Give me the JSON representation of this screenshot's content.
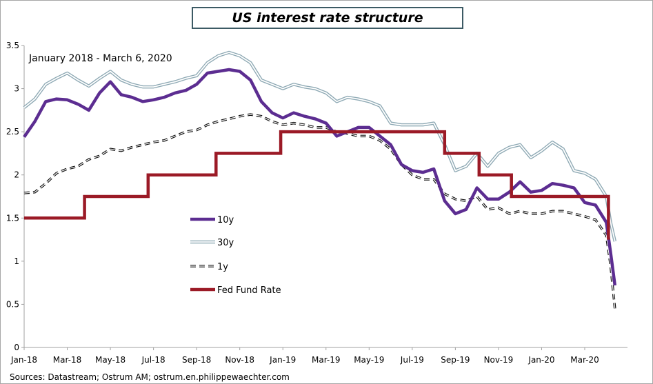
{
  "chart_data": {
    "type": "line",
    "title": "US interest rate structure",
    "subtitle": "January 2018 - March 6, 2020",
    "source": "Sources: Datastream;  Ostrum  AM;  ostrum.en.philippewaechter.com",
    "ylim": [
      0,
      3.5
    ],
    "yticks": [
      "0",
      "0.5",
      "1",
      "1.5",
      "2",
      "2.5",
      "3",
      "3.5"
    ],
    "xticks": [
      "Jan-18",
      "Mar-18",
      "May-18",
      "Jul-18",
      "Sep-18",
      "Nov-18",
      "Jan-19",
      "Mar-19",
      "May-19",
      "Jul-19",
      "Sep-19",
      "Nov-19",
      "Jan-20",
      "Mar-20"
    ],
    "grid": false,
    "legend_position": "center-left",
    "series": [
      {
        "name": "10y",
        "color": "#5c2d91",
        "style": "solid-thick",
        "points": [
          [
            0,
            2.44
          ],
          [
            0.5,
            2.62
          ],
          [
            1,
            2.85
          ],
          [
            1.5,
            2.88
          ],
          [
            2,
            2.87
          ],
          [
            2.5,
            2.82
          ],
          [
            3,
            2.75
          ],
          [
            3.5,
            2.95
          ],
          [
            4,
            3.08
          ],
          [
            4.5,
            2.93
          ],
          [
            5,
            2.9
          ],
          [
            5.5,
            2.85
          ],
          [
            6,
            2.87
          ],
          [
            6.5,
            2.9
          ],
          [
            7,
            2.95
          ],
          [
            7.5,
            2.98
          ],
          [
            8,
            3.05
          ],
          [
            8.5,
            3.18
          ],
          [
            9,
            3.2
          ],
          [
            9.5,
            3.22
          ],
          [
            10,
            3.2
          ],
          [
            10.5,
            3.1
          ],
          [
            11,
            2.85
          ],
          [
            11.5,
            2.72
          ],
          [
            12,
            2.66
          ],
          [
            12.5,
            2.72
          ],
          [
            13,
            2.68
          ],
          [
            13.5,
            2.65
          ],
          [
            14,
            2.6
          ],
          [
            14.5,
            2.45
          ],
          [
            15,
            2.5
          ],
          [
            15.5,
            2.55
          ],
          [
            16,
            2.55
          ],
          [
            16.5,
            2.45
          ],
          [
            17,
            2.35
          ],
          [
            17.5,
            2.12
          ],
          [
            18,
            2.05
          ],
          [
            18.5,
            2.03
          ],
          [
            19,
            2.07
          ],
          [
            19.5,
            1.7
          ],
          [
            20,
            1.55
          ],
          [
            20.5,
            1.6
          ],
          [
            21,
            1.85
          ],
          [
            21.5,
            1.72
          ],
          [
            22,
            1.72
          ],
          [
            22.5,
            1.8
          ],
          [
            23,
            1.92
          ],
          [
            23.5,
            1.8
          ],
          [
            24,
            1.82
          ],
          [
            24.5,
            1.9
          ],
          [
            25,
            1.88
          ],
          [
            25.5,
            1.85
          ],
          [
            26,
            1.68
          ],
          [
            26.5,
            1.65
          ],
          [
            27,
            1.45
          ],
          [
            27.2,
            1.1
          ],
          [
            27.4,
            0.72
          ]
        ]
      },
      {
        "name": "30y",
        "color": "#8ea9b4",
        "style": "double-outline",
        "points": [
          [
            0,
            2.78
          ],
          [
            0.5,
            2.88
          ],
          [
            1,
            3.05
          ],
          [
            1.5,
            3.12
          ],
          [
            2,
            3.18
          ],
          [
            2.5,
            3.1
          ],
          [
            3,
            3.03
          ],
          [
            3.5,
            3.12
          ],
          [
            4,
            3.2
          ],
          [
            4.5,
            3.1
          ],
          [
            5,
            3.05
          ],
          [
            5.5,
            3.02
          ],
          [
            6,
            3.02
          ],
          [
            6.5,
            3.05
          ],
          [
            7,
            3.08
          ],
          [
            7.5,
            3.12
          ],
          [
            8,
            3.15
          ],
          [
            8.5,
            3.3
          ],
          [
            9,
            3.38
          ],
          [
            9.5,
            3.42
          ],
          [
            10,
            3.38
          ],
          [
            10.5,
            3.3
          ],
          [
            11,
            3.1
          ],
          [
            11.5,
            3.05
          ],
          [
            12,
            3.0
          ],
          [
            12.5,
            3.05
          ],
          [
            13,
            3.02
          ],
          [
            13.5,
            3.0
          ],
          [
            14,
            2.95
          ],
          [
            14.5,
            2.85
          ],
          [
            15,
            2.9
          ],
          [
            15.5,
            2.88
          ],
          [
            16,
            2.85
          ],
          [
            16.5,
            2.8
          ],
          [
            17,
            2.6
          ],
          [
            17.5,
            2.58
          ],
          [
            18,
            2.58
          ],
          [
            18.5,
            2.58
          ],
          [
            19,
            2.6
          ],
          [
            19.5,
            2.35
          ],
          [
            20,
            2.05
          ],
          [
            20.5,
            2.1
          ],
          [
            21,
            2.25
          ],
          [
            21.5,
            2.1
          ],
          [
            22,
            2.25
          ],
          [
            22.5,
            2.32
          ],
          [
            23,
            2.35
          ],
          [
            23.5,
            2.2
          ],
          [
            24,
            2.28
          ],
          [
            24.5,
            2.38
          ],
          [
            25,
            2.3
          ],
          [
            25.5,
            2.05
          ],
          [
            26,
            2.02
          ],
          [
            26.5,
            1.95
          ],
          [
            27,
            1.75
          ],
          [
            27.2,
            1.45
          ],
          [
            27.4,
            1.23
          ]
        ]
      },
      {
        "name": "1y",
        "color": "#111111",
        "style": "dashed",
        "points": [
          [
            0,
            1.79
          ],
          [
            0.5,
            1.8
          ],
          [
            1,
            1.9
          ],
          [
            1.5,
            2.02
          ],
          [
            2,
            2.07
          ],
          [
            2.5,
            2.1
          ],
          [
            3,
            2.18
          ],
          [
            3.5,
            2.22
          ],
          [
            4,
            2.3
          ],
          [
            4.5,
            2.28
          ],
          [
            5,
            2.32
          ],
          [
            5.5,
            2.35
          ],
          [
            6,
            2.38
          ],
          [
            6.5,
            2.4
          ],
          [
            7,
            2.45
          ],
          [
            7.5,
            2.5
          ],
          [
            8,
            2.52
          ],
          [
            8.5,
            2.58
          ],
          [
            9,
            2.62
          ],
          [
            9.5,
            2.65
          ],
          [
            10,
            2.68
          ],
          [
            10.5,
            2.7
          ],
          [
            11,
            2.68
          ],
          [
            11.5,
            2.62
          ],
          [
            12,
            2.58
          ],
          [
            12.5,
            2.6
          ],
          [
            13,
            2.58
          ],
          [
            13.5,
            2.55
          ],
          [
            14,
            2.55
          ],
          [
            14.5,
            2.5
          ],
          [
            15,
            2.48
          ],
          [
            15.5,
            2.45
          ],
          [
            16,
            2.45
          ],
          [
            16.5,
            2.4
          ],
          [
            17,
            2.3
          ],
          [
            17.5,
            2.12
          ],
          [
            18,
            2.0
          ],
          [
            18.5,
            1.95
          ],
          [
            19,
            1.95
          ],
          [
            19.5,
            1.78
          ],
          [
            20,
            1.72
          ],
          [
            20.5,
            1.7
          ],
          [
            21,
            1.75
          ],
          [
            21.5,
            1.6
          ],
          [
            22,
            1.62
          ],
          [
            22.5,
            1.55
          ],
          [
            23,
            1.58
          ],
          [
            23.5,
            1.55
          ],
          [
            24,
            1.55
          ],
          [
            24.5,
            1.58
          ],
          [
            25,
            1.58
          ],
          [
            25.5,
            1.55
          ],
          [
            26,
            1.52
          ],
          [
            26.5,
            1.48
          ],
          [
            27,
            1.3
          ],
          [
            27.2,
            0.95
          ],
          [
            27.4,
            0.45
          ]
        ]
      },
      {
        "name": "Fed Fund Rate",
        "color": "#9b1a26",
        "style": "step-thick",
        "points": [
          [
            0,
            1.5
          ],
          [
            2.8,
            1.5
          ],
          [
            2.8,
            1.75
          ],
          [
            5.75,
            1.75
          ],
          [
            5.75,
            2.0
          ],
          [
            8.9,
            2.0
          ],
          [
            8.9,
            2.25
          ],
          [
            11.9,
            2.25
          ],
          [
            11.9,
            2.5
          ],
          [
            19.5,
            2.5
          ],
          [
            19.5,
            2.25
          ],
          [
            21.1,
            2.25
          ],
          [
            21.1,
            2.0
          ],
          [
            22.6,
            2.0
          ],
          [
            22.6,
            1.75
          ],
          [
            27.1,
            1.75
          ],
          [
            27.1,
            1.25
          ]
        ]
      }
    ]
  }
}
